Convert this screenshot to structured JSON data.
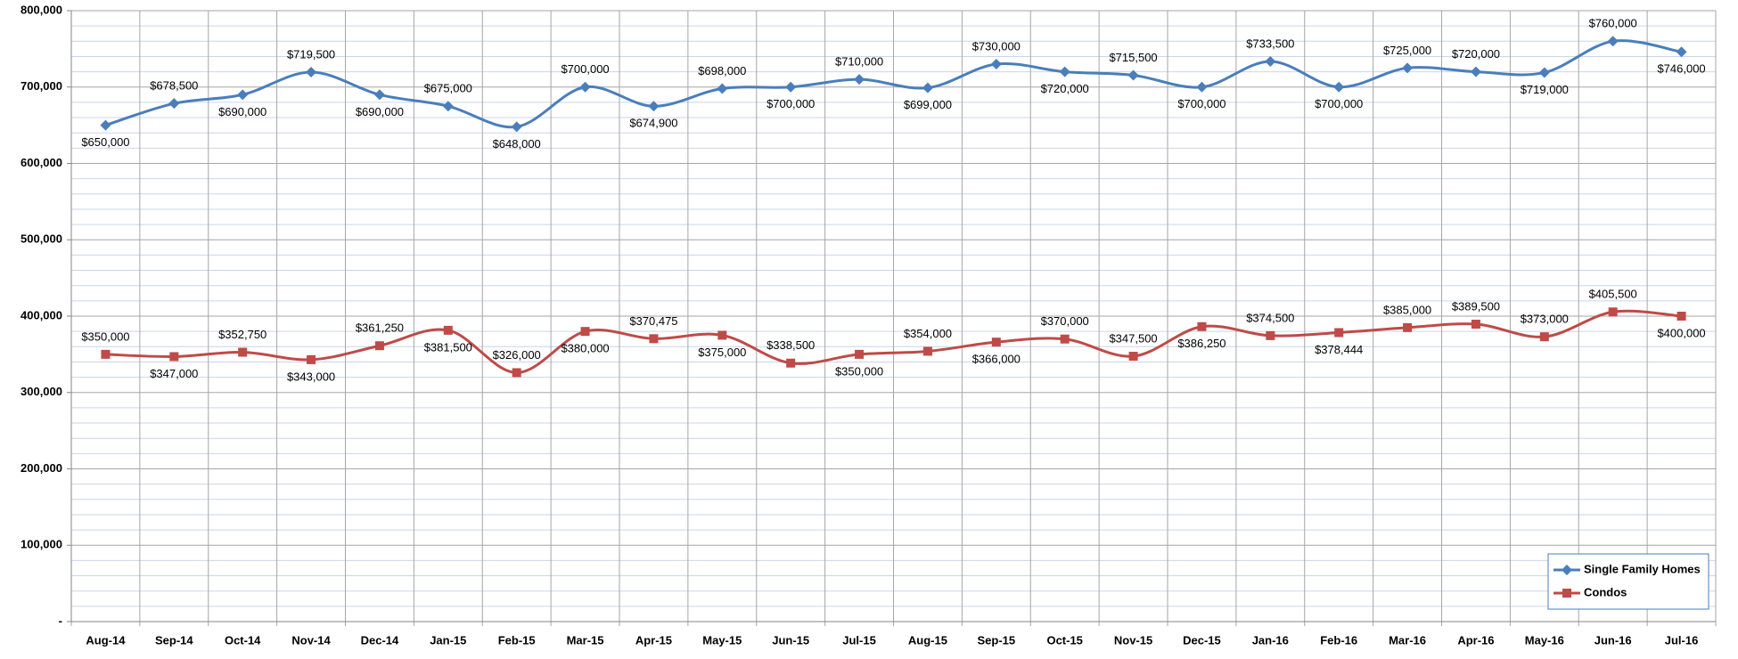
{
  "chart_data": {
    "type": "line",
    "categories": [
      "Aug-14",
      "Sep-14",
      "Oct-14",
      "Nov-14",
      "Dec-14",
      "Jan-15",
      "Feb-15",
      "Mar-15",
      "Apr-15",
      "May-15",
      "Jun-15",
      "Jul-15",
      "Aug-15",
      "Sep-15",
      "Oct-15",
      "Nov-15",
      "Dec-15",
      "Jan-16",
      "Feb-16",
      "Mar-16",
      "Apr-16",
      "May-16",
      "Jun-16",
      "Jul-16"
    ],
    "series": [
      {
        "name": "Single Family Homes",
        "color": "#4a7ebb",
        "marker": "diamond",
        "values": [
          650000,
          678500,
          690000,
          719500,
          690000,
          675000,
          648000,
          700000,
          674900,
          698000,
          700000,
          710000,
          699000,
          730000,
          720000,
          715500,
          700000,
          733500,
          700000,
          725000,
          720000,
          719000,
          760000,
          746000
        ],
        "value_labels": [
          "$650,000",
          "$678,500",
          "$690,000",
          "$719,500",
          "$690,000",
          "$675,000",
          "$648,000",
          "$700,000",
          "$674,900",
          "$698,000",
          "$700,000",
          "$710,000",
          "$699,000",
          "$730,000",
          "$720,000",
          "$715,500",
          "$700,000",
          "$733,500",
          "$700,000",
          "$725,000",
          "$720,000",
          "$719,000",
          "$760,000",
          "$746,000"
        ]
      },
      {
        "name": "Condos",
        "color": "#be4b48",
        "marker": "square",
        "values": [
          350000,
          347000,
          352750,
          343000,
          361250,
          381500,
          326000,
          380000,
          370475,
          375000,
          338500,
          350000,
          354000,
          366000,
          370000,
          347500,
          386250,
          374500,
          378444,
          385000,
          389500,
          373000,
          405500,
          400000
        ],
        "value_labels": [
          "$350,000",
          "$347,000",
          "$352,750",
          "$343,000",
          "$361,250",
          "$381,500",
          "$326,000",
          "$380,000",
          "$370,475",
          "$375,000",
          "$338,500",
          "$350,000",
          "$354,000",
          "$366,000",
          "$370,000",
          "$347,500",
          "$386,250",
          "$374,500",
          "$378,444",
          "$385,000",
          "$389,500",
          "$373,000",
          "$405,500",
          "$400,000"
        ]
      }
    ],
    "ylim": [
      0,
      800000
    ],
    "yticks": [
      {
        "value": 0,
        "label": "-"
      },
      {
        "value": 100000,
        "label": "100,000"
      },
      {
        "value": 200000,
        "label": "200,000"
      },
      {
        "value": 300000,
        "label": "300,000"
      },
      {
        "value": 400000,
        "label": "400,000"
      },
      {
        "value": 500000,
        "label": "500,000"
      },
      {
        "value": 600000,
        "label": "600,000"
      },
      {
        "value": 700000,
        "label": "700,000"
      },
      {
        "value": 800000,
        "label": "800,000"
      }
    ],
    "grid": true,
    "legend": "lower right"
  }
}
